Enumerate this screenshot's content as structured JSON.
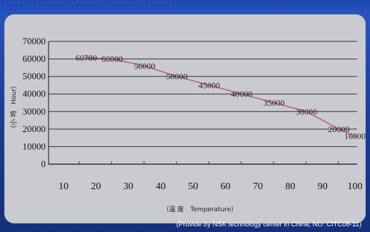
{
  "chart_data": {
    "type": "line",
    "title": "",
    "xlabel": "（溫 度　Temperature）",
    "ylabel": "（小 時　Hour）",
    "x": [
      17,
      25,
      35,
      45,
      55,
      65,
      75,
      85,
      95,
      100
    ],
    "values": [
      60700,
      60000,
      56000,
      50000,
      45000,
      40000,
      35000,
      30000,
      20000,
      16000
    ],
    "data_labels": [
      "60700",
      "60000",
      "56000",
      "50000",
      "45000",
      "40000",
      "35000",
      "30000",
      "20000",
      "16000"
    ],
    "x_ticks": [
      10,
      20,
      30,
      40,
      50,
      60,
      70,
      80,
      90,
      100
    ],
    "y_ticks": [
      0,
      10000,
      20000,
      30000,
      40000,
      50000,
      60000,
      70000
    ],
    "xlim": [
      10,
      100
    ],
    "ylim": [
      0,
      70000
    ],
    "grid": "horizontal",
    "legend": "none",
    "colors": {
      "line": "#c0506a",
      "grid": "#333333",
      "background": "#c9cbd1"
    }
  },
  "credit": "(Provide by NSK technology center in China, NO: CITC08-11)",
  "header_text": "· · · · · · · · · · · · · · · · · · · · · · · · · · · · · · · · · · · · · ·"
}
